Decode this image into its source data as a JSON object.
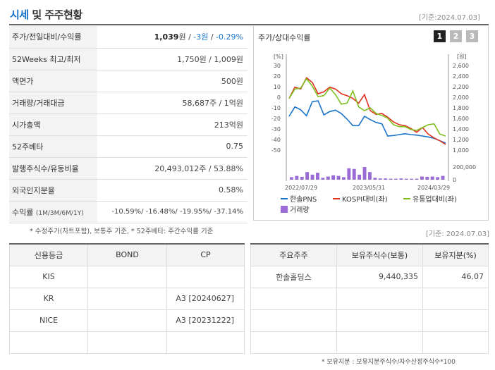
{
  "header": {
    "title_main": "시세",
    "title_rest": "및 주주현황",
    "ref_date": "[기준:2024.07.03]"
  },
  "info": {
    "price_label": "주가/전일대비/수익률",
    "price": "1,039",
    "price_unit": "원",
    "change": "-3원",
    "change_pct": "-0.29%",
    "w52_label": "52Weeks 최고/최저",
    "w52_value": "1,750원 / 1,009원",
    "par_label": "액면가",
    "par_value": "500원",
    "volume_label": "거래량/거래대금",
    "volume_value": "58,687주 / 1억원",
    "mcap_label": "시가총액",
    "mcap_value": "213억원",
    "beta_label": "52주베타",
    "beta_value": "0.75",
    "shares_label": "발행주식수/유동비율",
    "shares_value": "20,493,012주 / 53.88%",
    "foreign_label": "외국인지분율",
    "foreign_value": "0.58%",
    "return_label": "수익률",
    "return_sub": "(1M/3M/6M/1Y)",
    "return_value": "-10.59%/ -16.48%/ -19.95%/ -37.14%"
  },
  "info_note": "* 수정주가(차트포함), 보통주 기준, * 52주베타: 주간수익률 기준",
  "chart": {
    "title": "주가/상대수익률",
    "tabs": [
      "1",
      "2",
      "3"
    ],
    "colors": {
      "price": "#1a73c8",
      "kospi": "#e0321f",
      "industry": "#7fbf1f",
      "volume": "#9b6bd6"
    },
    "legend": {
      "price": "한솔PNS",
      "kospi": "KOSPI대비(좌)",
      "industry": "유통업대비(좌)",
      "volume": "거래량"
    }
  },
  "chart_data": {
    "type": "line",
    "x_ticks": [
      "2022/07/29",
      "2023/05/31",
      "2024/03/29"
    ],
    "left_axis": {
      "unit": "[%]",
      "ticks": [
        "30",
        "20",
        "10",
        "0",
        "-10",
        "-20",
        "-30",
        "-40",
        "-50"
      ],
      "range": [
        -55,
        35
      ]
    },
    "right_axis": {
      "unit": "[원]",
      "ticks": [
        "2,600",
        "2,400",
        "2,200",
        "2,000",
        "1,800",
        "1,600",
        "1,400",
        "1,200",
        "1,000"
      ],
      "range": [
        900,
        2700
      ]
    },
    "volume_axis": {
      "ticks": [
        "200,000",
        "0"
      ],
      "range": [
        0,
        200000
      ]
    },
    "series": [
      {
        "name": "한솔PNS",
        "axis": "right",
        "values": [
          1620,
          1820,
          1760,
          1630,
          1930,
          1950,
          1650,
          1720,
          1750,
          1680,
          1560,
          1420,
          1420,
          1620,
          1550,
          1490,
          1460,
          1200,
          1210,
          1230,
          1250,
          1230,
          1220,
          1200,
          1180,
          1150,
          1100,
          1050
        ]
      },
      {
        "name": "KOSPI대비(좌)",
        "axis": "left",
        "values": [
          0,
          12,
          10,
          22,
          17,
          5,
          7,
          12,
          10,
          5,
          3,
          0,
          -5,
          4,
          -13,
          -17,
          -16,
          -20,
          -25,
          -28,
          -29,
          -32,
          -36,
          -31,
          -38,
          -42,
          -45,
          -49
        ]
      },
      {
        "name": "유통업대비(좌)",
        "axis": "left",
        "values": [
          0,
          10,
          11,
          21,
          13,
          2,
          3,
          11,
          4,
          -6,
          -5,
          8,
          -9,
          -13,
          -10,
          -16,
          -18,
          -21,
          -28,
          -30,
          -30,
          -33,
          -34,
          -31,
          -28,
          -27,
          -38,
          -40
        ]
      }
    ],
    "volume": [
      40000,
      60000,
      45000,
      120000,
      80000,
      110000,
      30000,
      50000,
      70000,
      60000,
      40000,
      180000,
      170000,
      80000,
      200000,
      120000,
      30000,
      20000,
      20000,
      15000,
      15000,
      20000,
      15000,
      15000,
      15000,
      50000,
      45000,
      50000,
      40000,
      60000
    ]
  },
  "credit": {
    "headers": [
      "신용등급",
      "BOND",
      "CP"
    ],
    "rows": [
      [
        "KIS",
        "",
        ""
      ],
      [
        "KR",
        "",
        "A3 [20240627]"
      ],
      [
        "NICE",
        "",
        "A3 [20231222]"
      ],
      [
        "",
        "",
        ""
      ]
    ]
  },
  "shareholders": {
    "ref_date": "[기준: 2024.07.03]",
    "headers": [
      "주요주주",
      "보유주식수(보통)",
      "보유지분(%)"
    ],
    "rows": [
      [
        "한솔홀딩스",
        "9,440,335",
        "46.07"
      ],
      [
        "",
        "",
        ""
      ],
      [
        "",
        "",
        ""
      ],
      [
        "",
        "",
        ""
      ]
    ],
    "note": "* 보유지분 : 보유지분주식수/자수산정주식수*100"
  }
}
